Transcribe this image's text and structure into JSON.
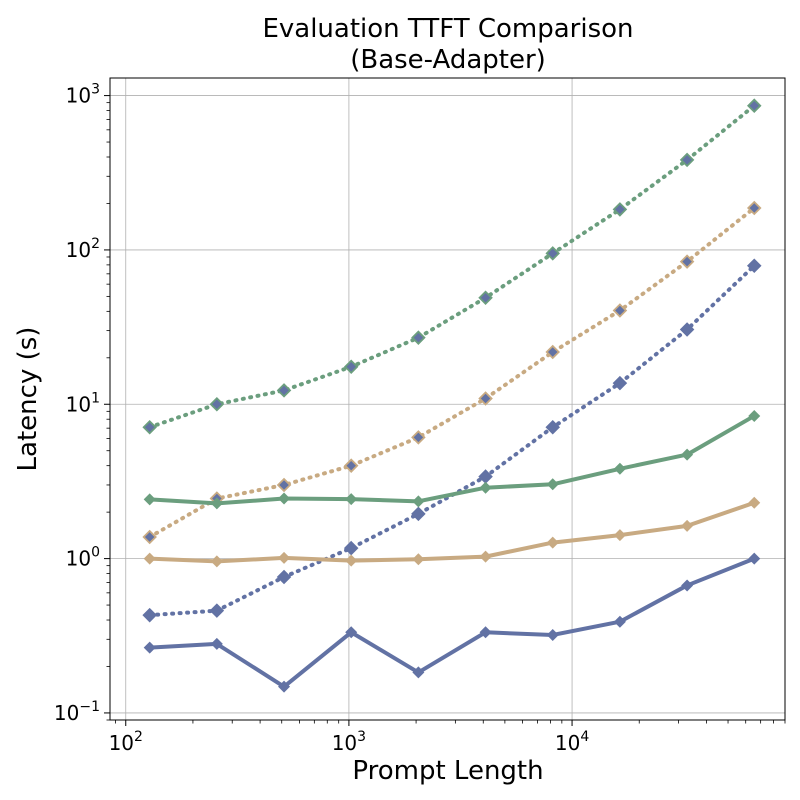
{
  "chart_data": {
    "type": "line",
    "title_line1": "Evaluation TTFT Comparison",
    "title_line2": "(Base-Adapter)",
    "xlabel": "Prompt Length",
    "ylabel": "Latency (s)",
    "x_scale": "log",
    "y_scale": "log",
    "xlim": [
      85,
      90000
    ],
    "ylim": [
      0.09,
      1300
    ],
    "grid": true,
    "x_ticks": [
      {
        "value": 100,
        "base": "10",
        "exp": "2"
      },
      {
        "value": 1000,
        "base": "10",
        "exp": "3"
      },
      {
        "value": 10000,
        "base": "10",
        "exp": "4"
      }
    ],
    "y_ticks": [
      {
        "value": 0.1,
        "base": "10",
        "exp": "−1"
      },
      {
        "value": 1,
        "base": "10",
        "exp": "0"
      },
      {
        "value": 10,
        "base": "10",
        "exp": "1"
      },
      {
        "value": 100,
        "base": "10",
        "exp": "2"
      },
      {
        "value": 1000,
        "base": "10",
        "exp": "3"
      }
    ],
    "x": [
      128,
      256,
      512,
      1024,
      2048,
      4096,
      8192,
      16384,
      32768,
      65536
    ],
    "series": [
      {
        "color": "#6b9e7e",
        "style": "dotted",
        "values": [
          7.1,
          10.0,
          12.3,
          17.5,
          27.0,
          49.0,
          95.0,
          183.0,
          383.0,
          860.0
        ]
      },
      {
        "color": "#c8aa82",
        "style": "dotted",
        "values": [
          1.38,
          2.45,
          3.0,
          4.0,
          6.1,
          10.9,
          21.8,
          40.5,
          84.0,
          187.0
        ]
      },
      {
        "color": "#6272a4",
        "style": "dotted",
        "values": [
          0.43,
          0.46,
          0.76,
          1.17,
          1.95,
          3.4,
          7.1,
          13.7,
          30.5,
          79.0
        ]
      },
      {
        "color": "#6b9e7e",
        "style": "solid",
        "values": [
          2.42,
          2.28,
          2.45,
          2.43,
          2.35,
          2.88,
          3.03,
          3.82,
          4.72,
          8.4
        ]
      },
      {
        "color": "#c8aa82",
        "style": "solid",
        "values": [
          1.0,
          0.96,
          1.01,
          0.97,
          0.99,
          1.03,
          1.27,
          1.42,
          1.63,
          2.3
        ]
      },
      {
        "color": "#6272a4",
        "style": "solid",
        "values": [
          0.265,
          0.28,
          0.148,
          0.333,
          0.183,
          0.333,
          0.32,
          0.39,
          0.67,
          1.0
        ]
      }
    ]
  }
}
